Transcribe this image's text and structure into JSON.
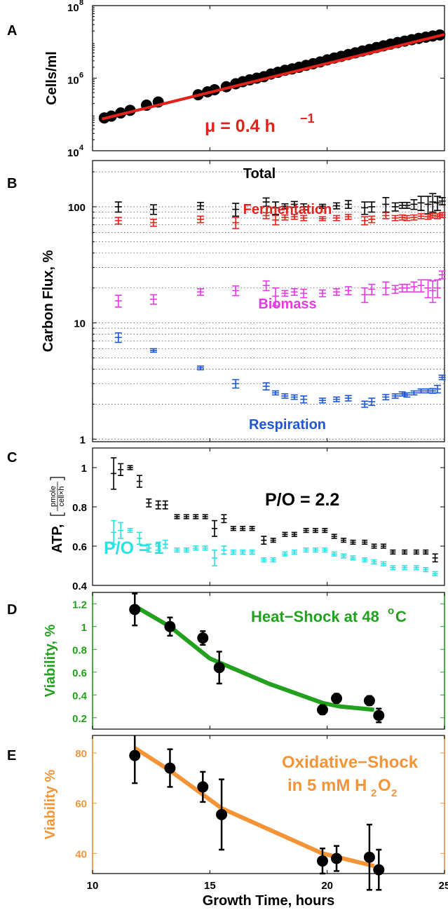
{
  "colors": {
    "black": "#000000",
    "red": "#e3231b",
    "magenta": "#e43be3",
    "blue": "#1f57d6",
    "cyan": "#27e3e3",
    "green": "#22a01e",
    "orange": "#f39437"
  },
  "chart_data": [
    {
      "panel": "A",
      "type": "scatter",
      "ylabel": "Cells/ml",
      "yscale": "log",
      "ylim": [
        10000,
        100000000
      ],
      "xlim": [
        10,
        25
      ],
      "ytick_labels": [
        "10",
        "10",
        "10"
      ],
      "ytick_exponents": [
        "4",
        "6",
        "8"
      ],
      "annotation": {
        "text": "μ = 0.4 h",
        "superscript": "−1"
      },
      "series": [
        {
          "style": "markers",
          "x": [
            10.5,
            10.8,
            11.2,
            11.6,
            12.3,
            12.8,
            14.5,
            14.9,
            15.2,
            15.7,
            16.1,
            16.4,
            16.7,
            17.0,
            17.3,
            17.6,
            17.9,
            18.2,
            18.5,
            18.8,
            19.1,
            19.4,
            19.7,
            20.0,
            20.3,
            20.6,
            20.9,
            21.2,
            21.5,
            21.8,
            22.1,
            22.4,
            22.7,
            23.0,
            23.3,
            23.6,
            23.9,
            24.2,
            24.5,
            24.8
          ],
          "y": [
            80000,
            90000,
            110000,
            130000,
            180000,
            220000,
            350000,
            420000,
            480000,
            580000,
            700000,
            800000,
            900000,
            1000000,
            1100000,
            1300000,
            1450000,
            1650000,
            1800000,
            2000000,
            2250000,
            2500000,
            2800000,
            3200000,
            3600000,
            4000000,
            4500000,
            5000000,
            5600000,
            6200000,
            7000000,
            7800000,
            8700000,
            9600000,
            10500000,
            11500000,
            12500000,
            13500000,
            14500000,
            15500000
          ]
        },
        {
          "style": "line",
          "x": [
            10.4,
            25.0
          ],
          "y": [
            75000,
            16000000
          ]
        }
      ]
    },
    {
      "panel": "B",
      "type": "scatter",
      "ylabel": "Carbon Flux, %",
      "yscale": "log",
      "ylim": [
        0.95,
        250
      ],
      "xlim": [
        10,
        25
      ],
      "ytick_labels": [
        "1",
        "10",
        "100"
      ],
      "grid": "dotted horizontal",
      "series": [
        {
          "name": "Total",
          "x": [
            11.1,
            12.6,
            14.6,
            16.1,
            17.4,
            17.8,
            18.2,
            18.6,
            19.0,
            19.8,
            20.4,
            20.9,
            21.6,
            21.9,
            22.5,
            22.9,
            23.2,
            23.4,
            23.7,
            24.0,
            24.3,
            24.5,
            24.7,
            24.9
          ],
          "y": [
            100,
            95,
            102,
            95,
            110,
            98,
            101,
            105,
            100,
            101,
            102,
            105,
            98,
            100,
            105,
            100,
            103,
            103,
            105,
            108,
            105,
            110,
            108,
            112
          ],
          "err": [
            10,
            9,
            7,
            12,
            9,
            12,
            5,
            6,
            6,
            4,
            6,
            8,
            12,
            10,
            15,
            8,
            6,
            6,
            10,
            15,
            18,
            20,
            15,
            8
          ]
        },
        {
          "name": "Fermentation",
          "x": [
            11.1,
            12.6,
            14.6,
            16.1,
            17.4,
            17.8,
            18.2,
            18.6,
            19.0,
            19.8,
            20.4,
            20.9,
            21.6,
            21.9,
            22.5,
            22.9,
            23.2,
            23.4,
            23.7,
            24.0,
            24.3,
            24.5,
            24.7,
            24.9
          ],
          "y": [
            76,
            73,
            78,
            73,
            84,
            77,
            81,
            82,
            80,
            79,
            80,
            82,
            76,
            78,
            84,
            80,
            81,
            80,
            81,
            83,
            82,
            84,
            83,
            85
          ],
          "err": [
            5,
            5,
            5,
            8,
            5,
            7,
            4,
            4,
            4,
            3,
            4,
            4,
            6,
            5,
            5,
            4,
            4,
            4,
            4,
            4,
            4,
            4,
            4,
            4
          ]
        },
        {
          "name": "Biomass",
          "x": [
            11.1,
            12.6,
            14.6,
            16.1,
            17.4,
            17.8,
            18.2,
            18.6,
            19.0,
            19.8,
            20.4,
            20.9,
            21.6,
            21.9,
            22.5,
            22.9,
            23.2,
            23.4,
            23.7,
            24.0,
            24.3,
            24.5,
            24.7,
            24.9
          ],
          "y": [
            15.5,
            16.0,
            18.5,
            19.0,
            21.0,
            17.0,
            18.0,
            18.5,
            18.0,
            18.0,
            18.5,
            19.0,
            17.5,
            19.5,
            20.0,
            19.5,
            20.0,
            20.0,
            20.5,
            21.0,
            20.0,
            19.0,
            20.0,
            26.0
          ],
          "err": [
            1.8,
            1.5,
            1.2,
            1.8,
            2.0,
            3.0,
            1.0,
            1.2,
            1.5,
            1.2,
            1.2,
            1.5,
            2.5,
            2.0,
            2.5,
            1.5,
            1.5,
            1.5,
            2.0,
            2.5,
            3.5,
            4.0,
            3.5,
            2.0
          ]
        },
        {
          "name": "Respiration",
          "x": [
            11.1,
            12.6,
            14.6,
            16.1,
            17.4,
            17.8,
            18.2,
            18.6,
            19.0,
            19.8,
            20.4,
            20.9,
            21.6,
            21.9,
            22.5,
            22.9,
            23.2,
            23.4,
            23.7,
            24.0,
            24.3,
            24.5,
            24.7,
            24.9
          ],
          "y": [
            7.5,
            5.8,
            4.1,
            3.0,
            2.85,
            2.5,
            2.35,
            2.3,
            2.2,
            2.15,
            2.2,
            2.25,
            2.0,
            2.1,
            2.3,
            2.35,
            2.45,
            2.4,
            2.5,
            2.6,
            2.6,
            2.6,
            2.7,
            3.4
          ],
          "err": [
            0.7,
            0.2,
            0.15,
            0.25,
            0.2,
            0.1,
            0.1,
            0.1,
            0.15,
            0.1,
            0.1,
            0.12,
            0.12,
            0.15,
            0.12,
            0.1,
            0.1,
            0.1,
            0.1,
            0.1,
            0.1,
            0.12,
            0.2,
            0.15
          ]
        }
      ]
    },
    {
      "panel": "C",
      "type": "scatter",
      "ylabel": "ATP,",
      "unit_fraction": {
        "numerator": "pmole",
        "denominator": "cell×h"
      },
      "ylim": [
        0.4,
        1.1
      ],
      "xlim": [
        10,
        25
      ],
      "ytick_labels": [
        "0.4",
        "0.6",
        "0.8",
        "1"
      ],
      "series": [
        {
          "name": "P/O = 2.2",
          "x": [
            10.9,
            11.2,
            11.6,
            12.0,
            12.4,
            12.8,
            13.1,
            13.6,
            14.0,
            14.4,
            14.8,
            15.2,
            15.6,
            16.0,
            16.4,
            16.8,
            17.3,
            17.7,
            18.2,
            18.6,
            19.1,
            19.5,
            19.9,
            20.3,
            20.7,
            21.1,
            21.6,
            22.0,
            22.4,
            22.8,
            23.3,
            23.8,
            24.2,
            24.6
          ],
          "y": [
            0.97,
            0.99,
            1.0,
            0.93,
            0.82,
            0.81,
            0.81,
            0.75,
            0.75,
            0.75,
            0.75,
            0.69,
            0.74,
            0.69,
            0.69,
            0.69,
            0.63,
            0.63,
            0.66,
            0.66,
            0.68,
            0.68,
            0.68,
            0.65,
            0.63,
            0.62,
            0.62,
            0.6,
            0.6,
            0.57,
            0.57,
            0.57,
            0.57,
            0.54
          ],
          "err": [
            0.08,
            0.03,
            0.01,
            0.03,
            0.02,
            0.02,
            0.02,
            0.01,
            0.01,
            0.01,
            0.01,
            0.04,
            0.02,
            0.01,
            0.01,
            0.01,
            0.02,
            0.01,
            0.01,
            0.01,
            0.01,
            0.01,
            0.01,
            0.01,
            0.01,
            0.01,
            0.01,
            0.01,
            0.01,
            0.01,
            0.01,
            0.01,
            0.01,
            0.02
          ]
        },
        {
          "name": "P/O = 1",
          "x": [
            10.9,
            11.2,
            11.6,
            12.0,
            12.4,
            12.8,
            13.1,
            13.6,
            14.0,
            14.4,
            14.8,
            15.2,
            15.6,
            16.0,
            16.4,
            16.8,
            17.3,
            17.7,
            18.2,
            18.6,
            19.1,
            19.5,
            19.9,
            20.3,
            20.7,
            21.1,
            21.6,
            22.0,
            22.4,
            22.8,
            23.3,
            23.8,
            24.2,
            24.6
          ],
          "y": [
            0.67,
            0.68,
            0.68,
            0.64,
            0.59,
            0.6,
            0.61,
            0.58,
            0.58,
            0.59,
            0.59,
            0.54,
            0.58,
            0.57,
            0.57,
            0.57,
            0.53,
            0.53,
            0.56,
            0.57,
            0.58,
            0.58,
            0.58,
            0.56,
            0.55,
            0.54,
            0.53,
            0.52,
            0.51,
            0.49,
            0.49,
            0.49,
            0.48,
            0.46
          ],
          "err": [
            0.06,
            0.04,
            0.01,
            0.03,
            0.02,
            0.02,
            0.02,
            0.01,
            0.01,
            0.01,
            0.01,
            0.04,
            0.02,
            0.01,
            0.01,
            0.01,
            0.01,
            0.01,
            0.01,
            0.01,
            0.01,
            0.01,
            0.01,
            0.01,
            0.01,
            0.01,
            0.01,
            0.01,
            0.01,
            0.01,
            0.01,
            0.01,
            0.01,
            0.01
          ]
        }
      ]
    },
    {
      "panel": "D",
      "type": "line",
      "ylabel": "Viability, %",
      "ylim": [
        0.1,
        1.3
      ],
      "xlim": [
        10,
        25
      ],
      "ytick_labels": [
        "0.2",
        "0.4",
        "0.6",
        "0.8",
        "1",
        "1.2"
      ],
      "annotation": {
        "text": "Heat−Shock at 48 ",
        "superscript": "o",
        "suffix": "C"
      },
      "series": [
        {
          "style": "points",
          "x": [
            11.8,
            13.3,
            14.7,
            15.4,
            19.8,
            20.4,
            21.8,
            22.2
          ],
          "y": [
            1.15,
            1.0,
            0.9,
            0.64,
            0.27,
            0.37,
            0.35,
            0.22
          ],
          "err": [
            0.14,
            0.08,
            0.06,
            0.14,
            0.04,
            0.04,
            0.04,
            0.06
          ]
        },
        {
          "style": "line",
          "x": [
            11.8,
            13.3,
            15.0,
            17.5,
            19.8,
            20.5,
            22.0
          ],
          "y": [
            1.18,
            1.0,
            0.72,
            0.5,
            0.33,
            0.3,
            0.27
          ]
        }
      ]
    },
    {
      "panel": "E",
      "type": "line",
      "ylabel": "Viability %",
      "xlabel": "Growth Time, hours",
      "ylim": [
        32,
        87
      ],
      "xlim": [
        10,
        25
      ],
      "xtick_labels": [
        "10",
        "15",
        "20",
        "25"
      ],
      "ytick_labels": [
        "40",
        "60",
        "80"
      ],
      "annotation": {
        "line1": "Oxidative−Shock",
        "line2": "in 5 mM H",
        "sub1": "2",
        "mid": "O",
        "sub2": "2"
      },
      "series": [
        {
          "style": "points",
          "x": [
            11.8,
            13.3,
            14.7,
            15.5,
            19.8,
            20.4,
            21.8,
            22.2
          ],
          "y": [
            79,
            74,
            66.5,
            55.5,
            37,
            38,
            38.5,
            33.5
          ],
          "err": [
            11,
            7.5,
            6,
            14,
            5,
            5,
            13,
            8
          ]
        },
        {
          "style": "line",
          "x": [
            11.8,
            13.3,
            15.5,
            19.8,
            22.0
          ],
          "y": [
            82,
            73,
            58,
            40,
            35
          ]
        }
      ]
    }
  ]
}
